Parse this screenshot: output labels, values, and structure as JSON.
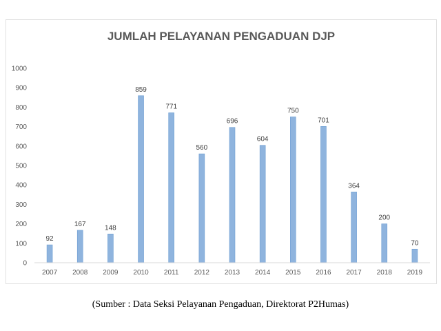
{
  "chart_data": {
    "type": "bar",
    "title": "JUMLAH PELAYANAN PENGADUAN DJP",
    "categories": [
      "2007",
      "2008",
      "2009",
      "2010",
      "2011",
      "2012",
      "2013",
      "2014",
      "2015",
      "2016",
      "2017",
      "2018",
      "2019"
    ],
    "values": [
      92,
      167,
      148,
      859,
      771,
      560,
      696,
      604,
      750,
      701,
      364,
      200,
      70
    ],
    "ylim": [
      0,
      1000
    ],
    "yticks": [
      0,
      100,
      200,
      300,
      400,
      500,
      600,
      700,
      800,
      900,
      1000
    ],
    "xlabel": "",
    "ylabel": "",
    "grid": false,
    "legend": "none",
    "bar_color": "#8fb4de",
    "bar_edge_color": "#6f9fd3"
  },
  "source_note": "(Sumber : Data Seksi Pelayanan Pengaduan, Direktorat P2Humas)"
}
